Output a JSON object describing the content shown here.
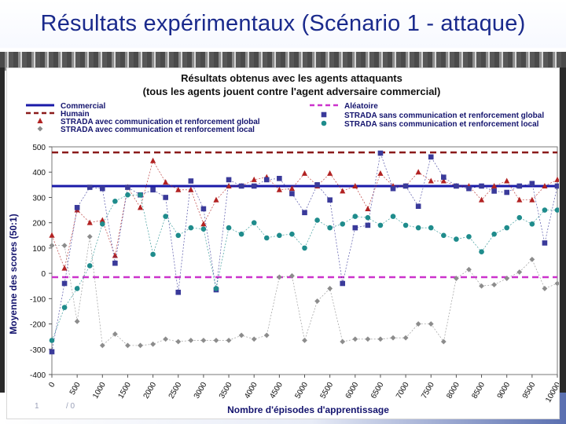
{
  "slide": {
    "title": "Résultats expérimentaux (Scénario 1 - attaque)",
    "footer_left": "1",
    "footer_right": "/ 0"
  },
  "chart_data": {
    "type": "line",
    "title": "Résultats obtenus avec les agents attaquants",
    "subtitle": "(tous les agents jouent contre l'agent adversaire commercial)",
    "xlabel": "Nombre d'épisodes d'apprentissage",
    "ylabel": "Moyenne des scores (50:1)",
    "ylim": [
      -400,
      500
    ],
    "xlim": [
      0,
      10000
    ],
    "yticks": [
      500,
      400,
      300,
      200,
      100,
      0,
      -100,
      -200,
      -300,
      -400
    ],
    "xticks": [
      "0",
      "500",
      "1000",
      "1500",
      "2000",
      "2500",
      "3000",
      "3500",
      "4000",
      "4500",
      "5000",
      "5500",
      "6000",
      "6500",
      "7000",
      "7500",
      "8000",
      "8500",
      "9000",
      "9500",
      "10000"
    ],
    "colors": {
      "commercial": "#1a1aa8",
      "humain": "#8b1a1a",
      "aleatoire": "#cc33cc",
      "com_global": "#b22222",
      "com_local": "#8c8c8c",
      "nocom_global": "#3a3a9a",
      "nocom_local": "#1f8c8c"
    },
    "series": [
      {
        "key": "commercial",
        "name": "Commercial",
        "style": "solid-line",
        "constant": 345
      },
      {
        "key": "humain",
        "name": "Humain",
        "style": "dashed-line",
        "constant": 478
      },
      {
        "key": "aleatoire",
        "name": "Aléatoire",
        "style": "dashed-line",
        "constant": -15
      },
      {
        "key": "com_global",
        "name": "STRADA avec communication et renforcement global",
        "marker": "triangle",
        "values": [
          150,
          20,
          250,
          200,
          210,
          70,
          340,
          260,
          445,
          360,
          330,
          330,
          195,
          290,
          345,
          345,
          370,
          380,
          330,
          335,
          395,
          345,
          395,
          325,
          345,
          255,
          395,
          345,
          345,
          400,
          365,
          365,
          345,
          345,
          290,
          345,
          365,
          290,
          290,
          345,
          370
        ]
      },
      {
        "key": "com_local",
        "name": "STRADA avec communication et renforcement local",
        "marker": "diamond",
        "values": [
          110,
          110,
          -190,
          145,
          -285,
          -240,
          -285,
          -285,
          -280,
          -260,
          -270,
          -265,
          -265,
          -265,
          -265,
          -245,
          -260,
          -245,
          -15,
          -10,
          -265,
          -110,
          -60,
          -270,
          -260,
          -260,
          -260,
          -255,
          -255,
          -200,
          -200,
          -270,
          -20,
          15,
          -50,
          -45,
          -20,
          5,
          55,
          -60,
          -40
        ]
      },
      {
        "key": "nocom_global",
        "name": "STRADA sans communication et renforcement global",
        "marker": "square",
        "values": [
          -310,
          -40,
          260,
          340,
          335,
          40,
          340,
          310,
          330,
          300,
          -75,
          365,
          255,
          -65,
          370,
          345,
          345,
          370,
          375,
          315,
          240,
          350,
          290,
          -40,
          180,
          190,
          475,
          335,
          345,
          265,
          460,
          380,
          345,
          335,
          345,
          325,
          320,
          345,
          355,
          120,
          345
        ]
      },
      {
        "key": "nocom_local",
        "name": "STRADA sans communication et renforcement local",
        "marker": "circle",
        "values": [
          -265,
          -135,
          -60,
          30,
          195,
          285,
          310,
          310,
          75,
          225,
          150,
          180,
          175,
          -60,
          180,
          155,
          200,
          140,
          150,
          155,
          100,
          210,
          180,
          195,
          225,
          220,
          190,
          225,
          190,
          180,
          180,
          150,
          135,
          145,
          85,
          155,
          180,
          220,
          195,
          250,
          250
        ]
      }
    ],
    "legend": "top"
  }
}
